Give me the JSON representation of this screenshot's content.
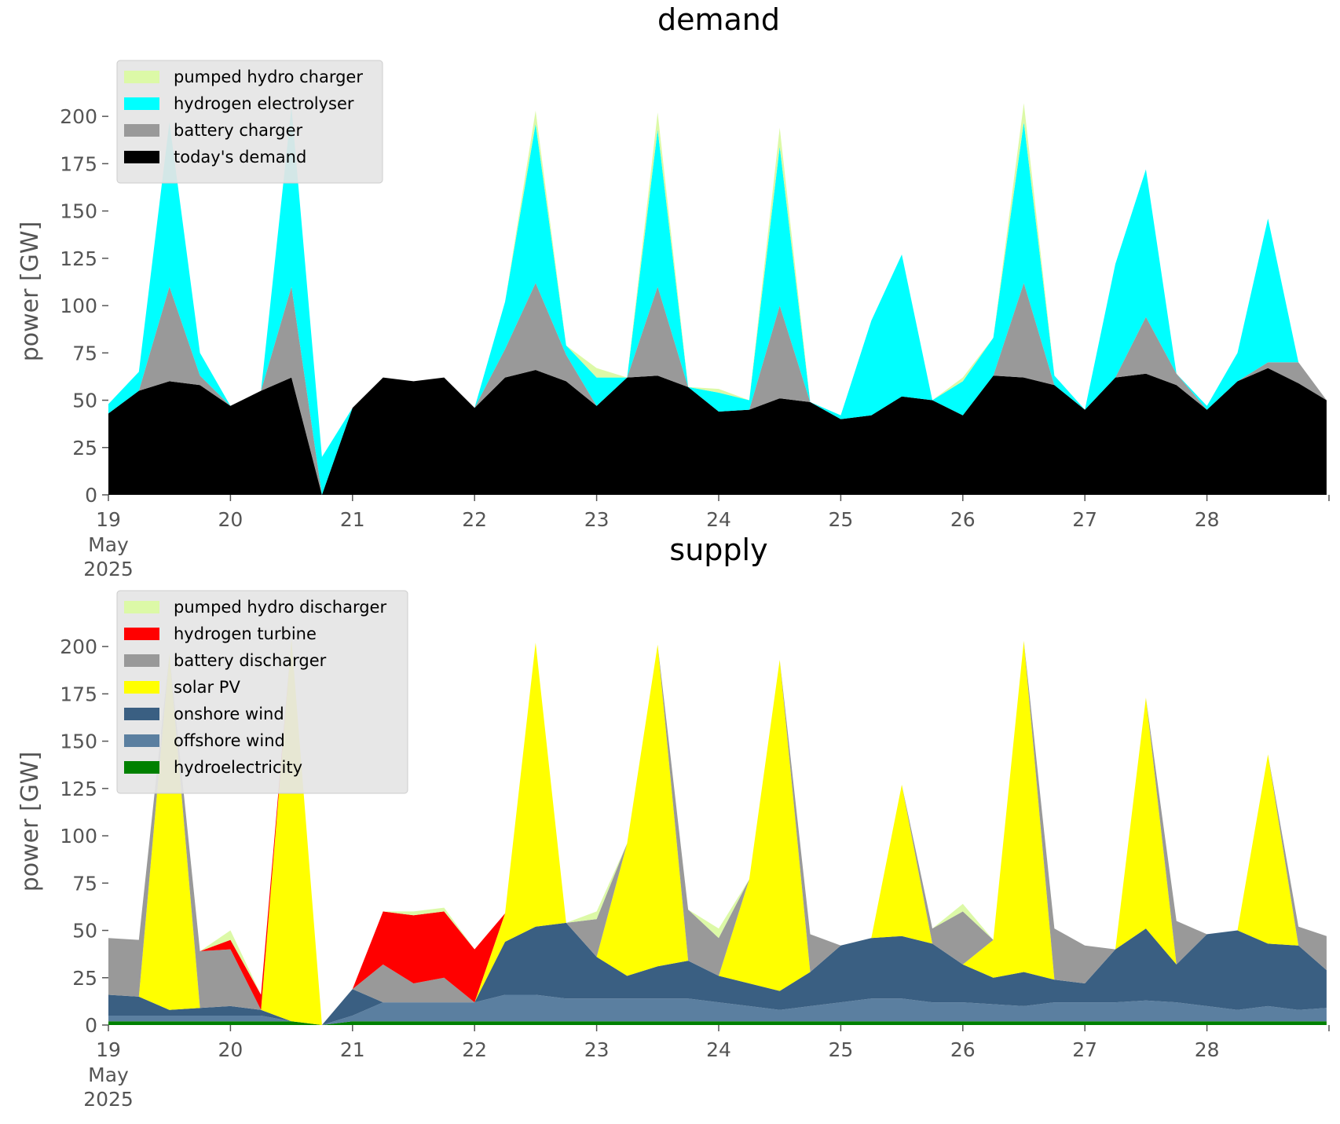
{
  "chart_data": [
    {
      "type": "area",
      "title": "demand",
      "ylabel": "power [GW]",
      "xlabel": "",
      "ylim": [
        0,
        215
      ],
      "xlim": [
        "2025-05-19",
        "2025-05-29"
      ],
      "yticks": [
        0,
        25,
        50,
        75,
        100,
        125,
        150,
        175,
        200
      ],
      "xticks": [
        "19",
        "20",
        "21",
        "22",
        "23",
        "24",
        "25",
        "26",
        "27",
        "28"
      ],
      "xtick_sublabel": [
        "May",
        "2025"
      ],
      "grid": false,
      "stacked": true,
      "legend": "top-left",
      "x": [
        19.0,
        19.25,
        19.5,
        19.75,
        20.0,
        20.25,
        20.5,
        20.75,
        21.0,
        21.25,
        21.5,
        21.75,
        22.0,
        22.25,
        22.5,
        22.75,
        23.0,
        23.25,
        23.5,
        23.75,
        24.0,
        24.25,
        24.5,
        24.75,
        25.0,
        25.25,
        25.5,
        25.75,
        26.0,
        26.25,
        26.5,
        26.75,
        27.0,
        27.25,
        27.5,
        27.75,
        28.0,
        28.25,
        28.5,
        28.75,
        28.98
      ],
      "series": [
        {
          "name": "today's demand",
          "color": "#000000",
          "values": [
            43,
            55,
            60,
            58,
            47,
            55,
            62,
            0,
            46,
            62,
            60,
            62,
            46,
            62,
            66,
            60,
            47,
            62,
            63,
            57,
            44,
            45,
            51,
            49,
            40,
            42,
            52,
            50,
            42,
            63,
            62,
            58,
            45,
            62,
            64,
            58,
            45,
            60,
            67,
            59,
            50
          ]
        },
        {
          "name": "battery charger",
          "color": "#999999",
          "values": [
            0,
            0,
            50,
            5,
            0,
            0,
            48,
            0,
            0,
            0,
            0,
            0,
            0,
            15,
            46,
            14,
            0,
            0,
            47,
            0,
            0,
            0,
            49,
            0,
            0,
            0,
            0,
            0,
            0,
            0,
            50,
            0,
            0,
            0,
            30,
            6,
            0,
            0,
            3,
            11,
            0
          ]
        },
        {
          "name": "hydrogen electrolyser",
          "color": "#00ffff",
          "values": [
            5,
            10,
            87,
            12,
            0,
            0,
            95,
            20,
            0,
            0,
            0,
            0,
            0,
            25,
            84,
            5,
            15,
            0,
            83,
            0,
            10,
            5,
            84,
            0,
            2,
            50,
            75,
            0,
            18,
            20,
            85,
            5,
            0,
            60,
            78,
            0,
            2,
            15,
            76,
            0,
            0
          ]
        },
        {
          "name": "pumped hydro charger",
          "color": "#dcf9a7",
          "values": [
            0,
            0,
            0,
            0,
            0,
            0,
            0,
            0,
            0,
            0,
            0,
            0,
            0,
            0,
            7,
            0,
            5,
            0,
            9,
            0,
            2,
            0,
            10,
            0,
            0,
            0,
            0,
            0,
            2,
            0,
            10,
            0,
            0,
            0,
            0,
            0,
            0,
            0,
            0,
            0,
            0
          ]
        }
      ]
    },
    {
      "type": "area",
      "title": "supply",
      "ylabel": "power [GW]",
      "xlabel": "",
      "ylim": [
        0,
        215
      ],
      "xlim": [
        "2025-05-19",
        "2025-05-29"
      ],
      "yticks": [
        0,
        25,
        50,
        75,
        100,
        125,
        150,
        175,
        200
      ],
      "xticks": [
        "19",
        "20",
        "21",
        "22",
        "23",
        "24",
        "25",
        "26",
        "27",
        "28"
      ],
      "xtick_sublabel": [
        "May",
        "2025"
      ],
      "grid": false,
      "stacked": true,
      "legend": "top-left",
      "x": [
        19.0,
        19.25,
        19.5,
        19.75,
        20.0,
        20.25,
        20.5,
        20.75,
        21.0,
        21.25,
        21.5,
        21.75,
        22.0,
        22.25,
        22.5,
        22.75,
        23.0,
        23.25,
        23.5,
        23.75,
        24.0,
        24.25,
        24.5,
        24.75,
        25.0,
        25.25,
        25.5,
        25.75,
        26.0,
        26.25,
        26.5,
        26.75,
        27.0,
        27.25,
        27.5,
        27.75,
        28.0,
        28.25,
        28.5,
        28.75,
        28.98
      ],
      "series": [
        {
          "name": "hydroelectricity",
          "color": "#008000",
          "values": [
            2,
            2,
            2,
            2,
            2,
            2,
            2,
            0,
            2,
            2,
            2,
            2,
            2,
            2,
            2,
            2,
            2,
            2,
            2,
            2,
            2,
            2,
            2,
            2,
            2,
            2,
            2,
            2,
            2,
            2,
            2,
            2,
            2,
            2,
            2,
            2,
            2,
            2,
            2,
            2,
            2
          ]
        },
        {
          "name": "offshore wind",
          "color": "#5b7fa0",
          "values": [
            3,
            3,
            3,
            3,
            3,
            3,
            0,
            0,
            3,
            10,
            10,
            10,
            10,
            14,
            14,
            12,
            12,
            12,
            12,
            12,
            10,
            8,
            6,
            8,
            10,
            12,
            12,
            10,
            10,
            9,
            8,
            10,
            10,
            10,
            11,
            10,
            8,
            6,
            8,
            6,
            7
          ]
        },
        {
          "name": "onshore wind",
          "color": "#3a5f82",
          "values": [
            11,
            10,
            3,
            4,
            5,
            3,
            0,
            0,
            14,
            0,
            0,
            0,
            0,
            28,
            36,
            40,
            22,
            12,
            17,
            20,
            14,
            12,
            10,
            18,
            30,
            32,
            33,
            31,
            20,
            14,
            18,
            12,
            10,
            28,
            38,
            20,
            38,
            42,
            33,
            34,
            20
          ]
        },
        {
          "name": "solar PV",
          "color": "#ffff00",
          "values": [
            0,
            0,
            188,
            0,
            0,
            0,
            202,
            0,
            0,
            0,
            0,
            0,
            0,
            15,
            150,
            0,
            0,
            70,
            170,
            0,
            0,
            55,
            175,
            0,
            0,
            0,
            80,
            0,
            0,
            20,
            175,
            0,
            0,
            0,
            122,
            0,
            0,
            0,
            100,
            0,
            0
          ]
        },
        {
          "name": "battery discharger",
          "color": "#999999",
          "values": [
            30,
            30,
            0,
            30,
            30,
            0,
            0,
            0,
            0,
            20,
            10,
            13,
            0,
            0,
            0,
            0,
            20,
            0,
            0,
            27,
            20,
            0,
            0,
            20,
            0,
            0,
            0,
            8,
            28,
            0,
            0,
            27,
            20,
            0,
            0,
            23,
            0,
            0,
            0,
            10,
            18
          ]
        },
        {
          "name": "hydrogen turbine",
          "color": "#ff0000",
          "values": [
            0,
            0,
            0,
            0,
            5,
            8,
            0,
            0,
            0,
            28,
            36,
            35,
            28,
            0,
            0,
            0,
            0,
            0,
            0,
            0,
            0,
            0,
            0,
            0,
            0,
            0,
            0,
            0,
            0,
            0,
            0,
            0,
            0,
            0,
            0,
            0,
            0,
            0,
            0,
            0,
            0
          ]
        },
        {
          "name": "pumped hydro discharger",
          "color": "#dcf9a7",
          "values": [
            0,
            0,
            0,
            0,
            5,
            0,
            0,
            0,
            0,
            0,
            2,
            2,
            0,
            0,
            0,
            0,
            4,
            0,
            0,
            0,
            5,
            0,
            0,
            0,
            0,
            0,
            0,
            0,
            4,
            0,
            0,
            0,
            0,
            0,
            0,
            0,
            0,
            0,
            0,
            0,
            0
          ]
        }
      ]
    }
  ]
}
